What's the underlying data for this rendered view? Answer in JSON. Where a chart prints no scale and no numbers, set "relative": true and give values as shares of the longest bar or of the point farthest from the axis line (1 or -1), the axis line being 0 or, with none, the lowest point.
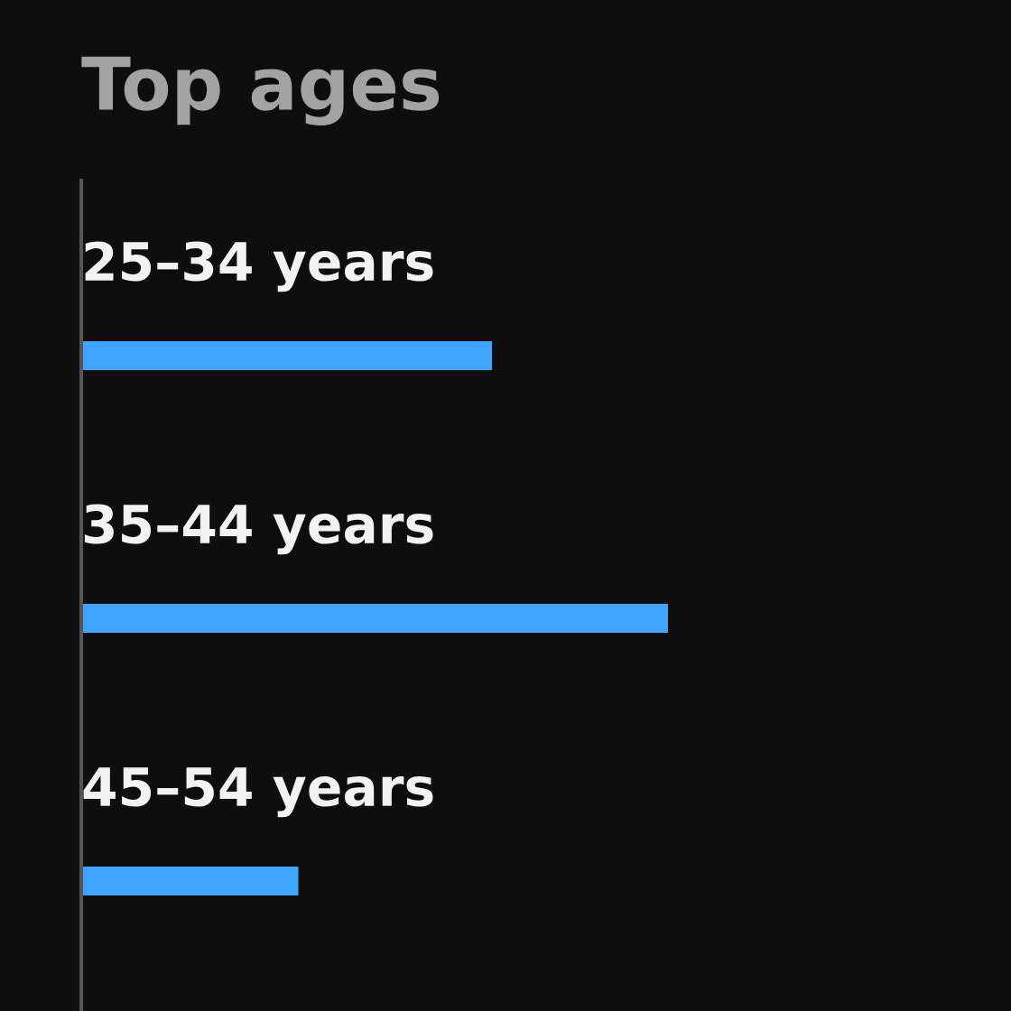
{
  "chart_data": {
    "type": "bar",
    "orientation": "horizontal",
    "relative": true,
    "title": "Top ages",
    "categories": [
      "25–34 years",
      "35–44 years",
      "45–54 years"
    ],
    "values": [
      0.7,
      1,
      0.37
    ],
    "color": "#3ea6ff"
  }
}
